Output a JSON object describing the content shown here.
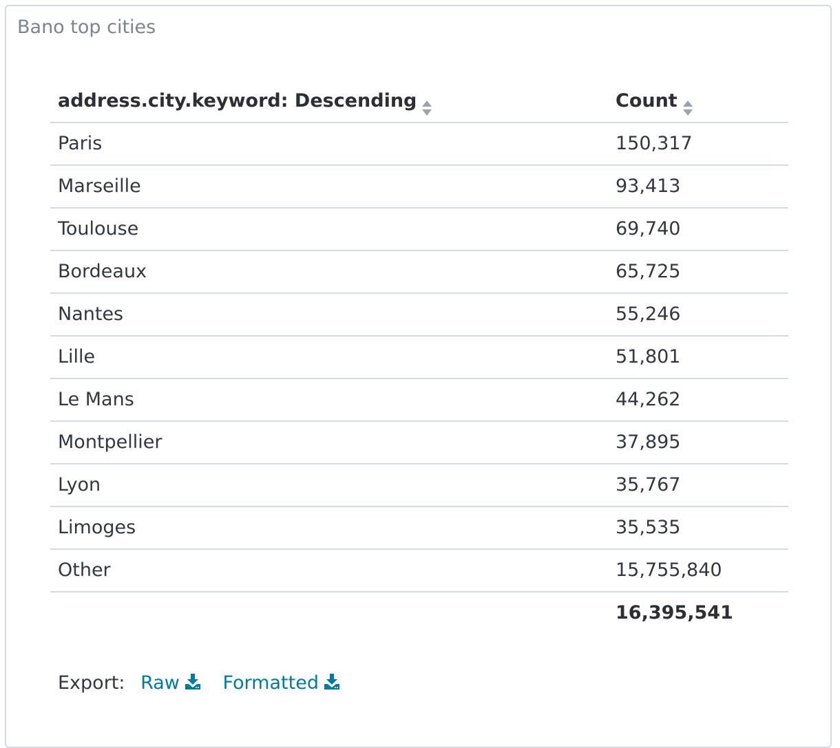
{
  "panel": {
    "title": "Bano top cities"
  },
  "table": {
    "columns": [
      {
        "label": "address.city.keyword: Descending",
        "sort_icon": "sort-icon"
      },
      {
        "label": "Count",
        "sort_icon": "sort-icon"
      }
    ],
    "rows": [
      {
        "city": "Paris",
        "count": "150,317"
      },
      {
        "city": "Marseille",
        "count": "93,413"
      },
      {
        "city": "Toulouse",
        "count": "69,740"
      },
      {
        "city": "Bordeaux",
        "count": "65,725"
      },
      {
        "city": "Nantes",
        "count": "55,246"
      },
      {
        "city": "Lille",
        "count": "51,801"
      },
      {
        "city": "Le Mans",
        "count": "44,262"
      },
      {
        "city": "Montpellier",
        "count": "37,895"
      },
      {
        "city": "Lyon",
        "count": "35,767"
      },
      {
        "city": "Limoges",
        "count": "35,535"
      },
      {
        "city": "Other",
        "count": "15,755,840"
      }
    ],
    "total": {
      "city": "",
      "count": "16,395,541"
    }
  },
  "export": {
    "label": "Export:",
    "raw_label": "Raw",
    "formatted_label": "Formatted",
    "icon": "download-icon"
  },
  "colors": {
    "link": "#0079a5",
    "border": "#d3dae6",
    "title": "#7b8592",
    "sort_icon": "#98a2b3"
  }
}
